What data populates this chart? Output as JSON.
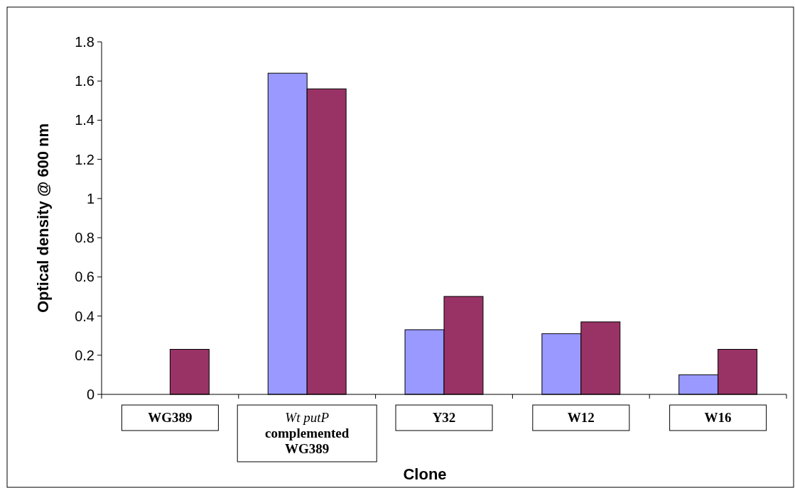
{
  "chart_data": {
    "type": "bar",
    "xlabel": "Clone",
    "ylabel": "Optical density @ 600 nm",
    "categories": [
      "WG389",
      "Wt putP\ncomplemented\nWG389",
      "Y32",
      "W12",
      "W16"
    ],
    "series": [
      {
        "color": "#9999ff",
        "values": [
          null,
          1.64,
          0.33,
          0.31,
          0.1
        ]
      },
      {
        "color": "#993366",
        "values": [
          0.23,
          1.56,
          0.5,
          0.37,
          0.23
        ]
      }
    ],
    "ylim": [
      0,
      1.8
    ],
    "yticks": [
      0,
      0.2,
      0.4,
      0.6,
      0.8,
      1,
      1.2,
      1.4,
      1.6,
      1.8
    ],
    "grid": false
  }
}
